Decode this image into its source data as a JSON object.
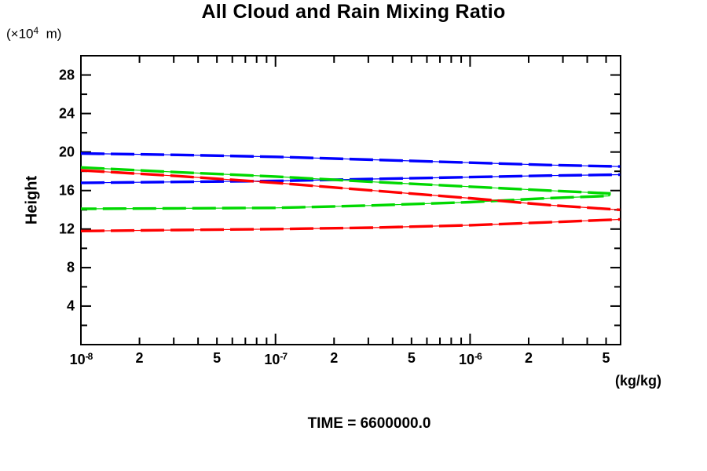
{
  "title": "All Cloud and Rain Mixing Ratio",
  "caption": "TIME = 6600000.0",
  "colors": {
    "blue": "#0000ff",
    "green": "#00d800",
    "red": "#ff0000",
    "axis": "#000000"
  },
  "y_axis": {
    "name": "Height",
    "unit_base": "(×10",
    "unit_exp": "4",
    "unit_rest": "  m)",
    "range_min": 0,
    "range_max": 30,
    "labeled_ticks": [
      28,
      24,
      20,
      16,
      12,
      8,
      4
    ],
    "minor_ticks": [
      26,
      22,
      18,
      14,
      10,
      6,
      2
    ]
  },
  "x_axis": {
    "unit": "(kg/kg)",
    "scale": "log",
    "major_ticks": [
      {
        "base": "10",
        "exp": "-8",
        "value": 1e-08
      },
      {
        "base": "10",
        "exp": "-7",
        "value": 1e-07
      },
      {
        "base": "10",
        "exp": "-6",
        "value": 1e-06
      }
    ],
    "labeled_minor_ticks": [
      {
        "label": "2",
        "value": 2e-08
      },
      {
        "label": "5",
        "value": 5e-08
      },
      {
        "label": "2",
        "value": 2e-07
      },
      {
        "label": "5",
        "value": 5e-07
      },
      {
        "label": "2",
        "value": 2e-06
      },
      {
        "label": "5",
        "value": 5e-06
      }
    ],
    "unlabeled_minor_ticks": [
      3e-08,
      4e-08,
      6e-08,
      7e-08,
      8e-08,
      9e-08,
      3e-07,
      4e-07,
      6e-07,
      7e-07,
      8e-07,
      9e-07,
      3e-06,
      4e-06
    ]
  },
  "chart_data": {
    "type": "line",
    "title": "All Cloud and Rain Mixing Ratio",
    "xlabel": "(kg/kg)",
    "ylabel": "Height (×10^4 m)",
    "x_scale": "log",
    "xlim": [
      1e-08,
      5.9e-06
    ],
    "ylim": [
      0,
      30
    ],
    "grid": false,
    "legend": "none",
    "annotation": "TIME = 6600000.0",
    "note": "Each colored curve is a vertical mixing-ratio profile (x = kg/kg, y = height ×10^4 m) with an upper and a lower branch entering at the left axis; drawn as a thin solid line overlaid with thick long dashes. Green branches join in a nose at ~5.2e-6; blue and red branches are clipped by the right axis.",
    "series": [
      {
        "name": "blue-profile",
        "color": "#0000ff",
        "join_branches": false,
        "upper": {
          "x": [
            1e-08,
            3.16e-08,
            1e-07,
            3.16e-07,
            1e-06,
            2.5e-06,
            5.9e-06
          ],
          "height": [
            19.85,
            19.7,
            19.5,
            19.2,
            18.9,
            18.65,
            18.5
          ]
        },
        "lower": {
          "x": [
            1e-08,
            3.16e-08,
            1e-07,
            3.16e-07,
            1e-06,
            2.5e-06,
            5.9e-06
          ],
          "height": [
            16.8,
            16.9,
            17.0,
            17.2,
            17.4,
            17.55,
            17.65
          ]
        }
      },
      {
        "name": "green-profile",
        "color": "#00d800",
        "join_branches": true,
        "upper": {
          "x": [
            1e-08,
            3.16e-08,
            1e-07,
            3.16e-07,
            1e-06,
            2.5e-06,
            5.2e-06
          ],
          "height": [
            18.4,
            17.9,
            17.45,
            16.9,
            16.4,
            16.0,
            15.7
          ]
        },
        "lower": {
          "x": [
            1e-08,
            3.16e-08,
            1e-07,
            3.16e-07,
            1e-06,
            2.5e-06,
            5.2e-06
          ],
          "height": [
            14.1,
            14.15,
            14.2,
            14.45,
            14.8,
            15.2,
            15.45
          ]
        }
      },
      {
        "name": "red-profile",
        "color": "#ff0000",
        "join_branches": false,
        "upper": {
          "x": [
            1e-08,
            3.16e-08,
            1e-07,
            3.16e-07,
            1e-06,
            2.5e-06,
            5.9e-06
          ],
          "height": [
            18.1,
            17.5,
            16.8,
            16.0,
            15.2,
            14.5,
            14.0
          ]
        },
        "lower": {
          "x": [
            1e-08,
            3.16e-08,
            1e-07,
            3.16e-07,
            1e-06,
            2.5e-06,
            5.9e-06
          ],
          "height": [
            11.8,
            11.9,
            12.0,
            12.15,
            12.4,
            12.7,
            13.0
          ]
        }
      }
    ]
  }
}
